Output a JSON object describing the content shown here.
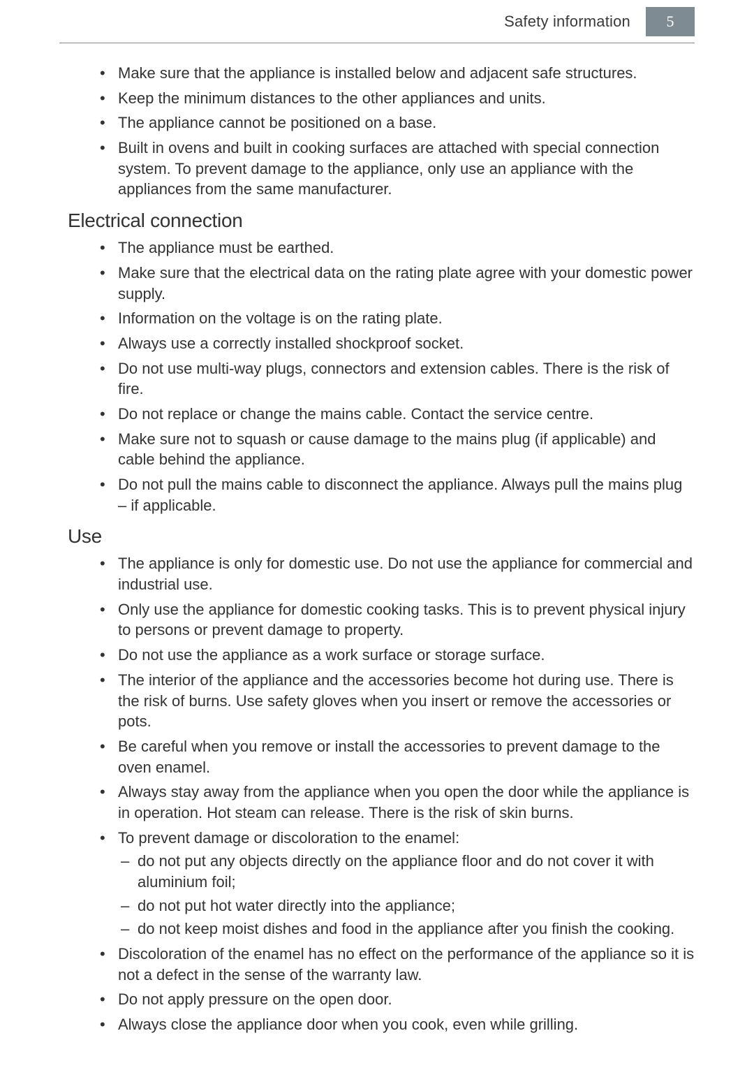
{
  "header": {
    "title": "Safety information",
    "page_number": "5",
    "page_box_bg": "#7f8b92",
    "page_box_fg": "#ffffff"
  },
  "intro_bullets": [
    "Make sure that the appliance is installed below and adjacent safe structures.",
    "Keep the minimum distances to the other appliances and units.",
    "The appliance cannot be positioned on a base.",
    "Built in ovens and built in cooking surfaces are attached with special connection system. To prevent damage to the appliance, only use an appliance with the appliances from the same manufacturer."
  ],
  "sections": [
    {
      "heading": "Electrical connection",
      "bullets": [
        {
          "text": "The appliance must be earthed."
        },
        {
          "text": "Make sure that the electrical data on the rating plate agree with your domestic power supply."
        },
        {
          "text": "Information on the voltage is on the rating plate."
        },
        {
          "text": "Always use a correctly installed shockproof socket."
        },
        {
          "text": "Do not use multi-way plugs, connectors and extension cables. There is the risk of fire."
        },
        {
          "text": "Do not replace or change the mains cable. Contact the service centre."
        },
        {
          "text": "Make sure not to squash or cause damage to the mains plug (if applicable) and cable behind the appliance."
        },
        {
          "text": "Do not pull the mains cable to disconnect the appliance. Always pull the mains plug – if applicable."
        }
      ]
    },
    {
      "heading": "Use",
      "bullets": [
        {
          "text": "The appliance is only for domestic use. Do not use the appliance for commercial and industrial use."
        },
        {
          "text": "Only use the appliance for domestic cooking tasks. This is to prevent physical injury to persons or prevent damage to property."
        },
        {
          "text": "Do not use the appliance as a work surface or storage surface."
        },
        {
          "text": "The interior of the appliance and the accessories become hot during use. There is the risk of burns. Use safety gloves when you insert or remove the accessories or pots."
        },
        {
          "text": "Be careful when you remove or install the accessories to prevent damage to the oven enamel."
        },
        {
          "text": "Always stay away from the appliance when you open the door while the appliance is in operation. Hot steam can release. There is the risk of skin burns."
        },
        {
          "text": "To prevent damage or discoloration to the enamel:",
          "sub": [
            "do not put any objects directly on the appliance floor and do not cover it with aluminium foil;",
            "do not put hot water directly into the appliance;",
            "do not keep moist dishes and food in the appliance after you finish the cooking."
          ]
        },
        {
          "text": "Discoloration of the enamel has no effect on the performance of the appliance so it is not a defect in the sense of the warranty law."
        },
        {
          "text": "Do not apply pressure on the open door."
        },
        {
          "text": "Always close the appliance door when you cook, even while grilling."
        }
      ]
    }
  ]
}
